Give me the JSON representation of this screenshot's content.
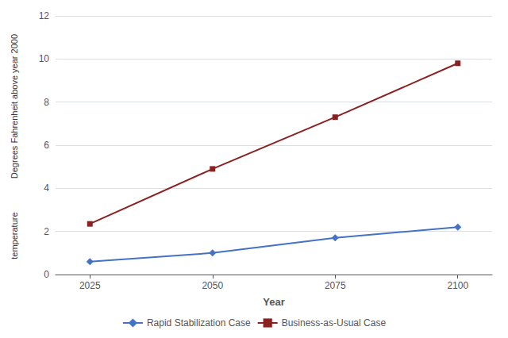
{
  "chart_data": {
    "type": "line",
    "x": [
      2025,
      2050,
      2075,
      2100
    ],
    "series": [
      {
        "name": "Rapid Stabilization Case",
        "color": "#4472C4",
        "marker": "diamond",
        "values": [
          0.6,
          1.0,
          1.7,
          2.2
        ]
      },
      {
        "name": "Business-as-Usual Case",
        "color": "#8B2020",
        "marker": "square",
        "values": [
          2.35,
          4.9,
          7.3,
          9.8
        ]
      }
    ],
    "xlabel": "Year",
    "annotations": [
      "Degrees Fahrenheit above year 2000",
      "temperature"
    ],
    "xlim": [
      2018,
      2107
    ],
    "xticks": [
      2025,
      2050,
      2075,
      2100
    ],
    "ylim": [
      0,
      12
    ],
    "yticks": [
      0,
      2,
      4,
      6,
      8,
      10,
      12
    ],
    "grid": true,
    "legend": "bottom"
  }
}
